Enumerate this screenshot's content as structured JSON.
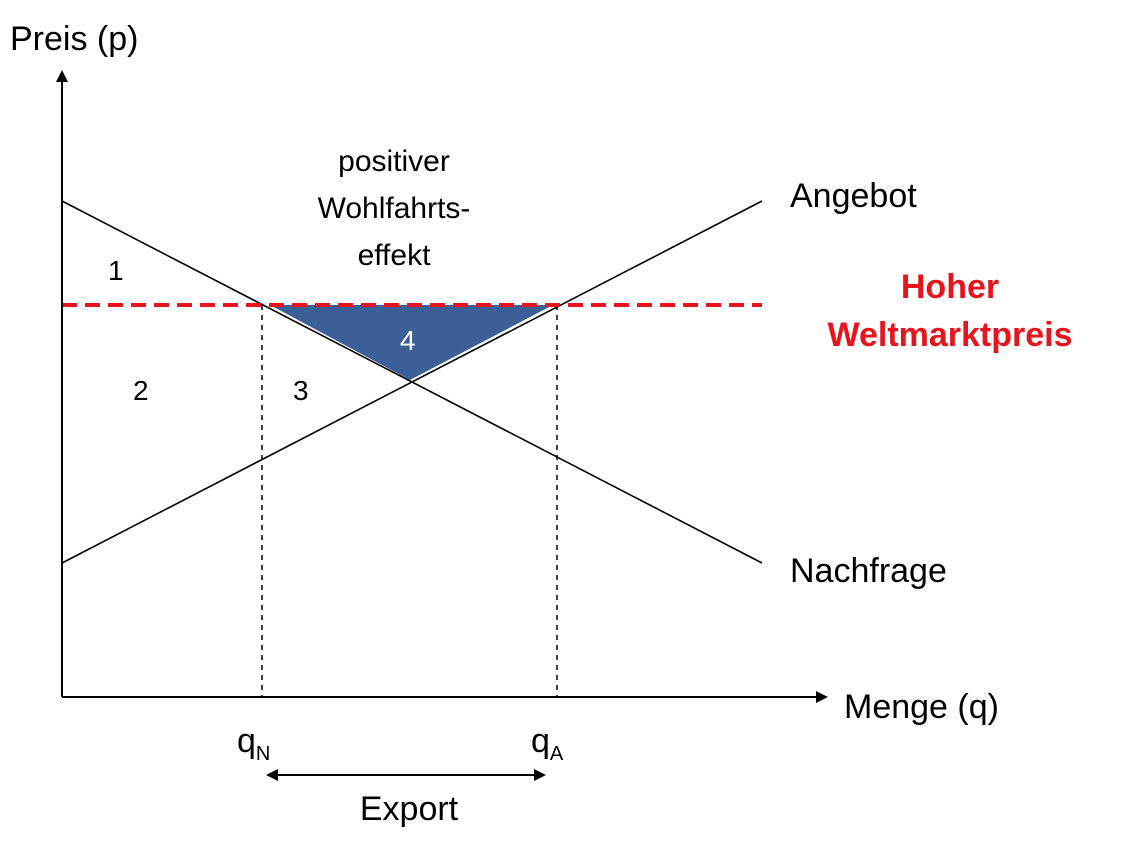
{
  "axes": {
    "y_label": "Preis (p)",
    "x_label": "Menge (q)"
  },
  "curves": {
    "supply_label": "Angebot",
    "demand_label": "Nachfrage"
  },
  "world_price": {
    "line1": "Hoher",
    "line2": "Weltmarktpreis",
    "color": "#e8141c"
  },
  "welfare_annotation": [
    "positiver",
    "Wohlfahrts-",
    "effekt"
  ],
  "regions": {
    "r1": "1",
    "r2": "2",
    "r3": "3",
    "r4": "4",
    "r4_fill": "#3b5f97"
  },
  "quantities": {
    "qN_base": "q",
    "qN_sub": "N",
    "qA_base": "q",
    "qA_sub": "A"
  },
  "export_label": "Export"
}
